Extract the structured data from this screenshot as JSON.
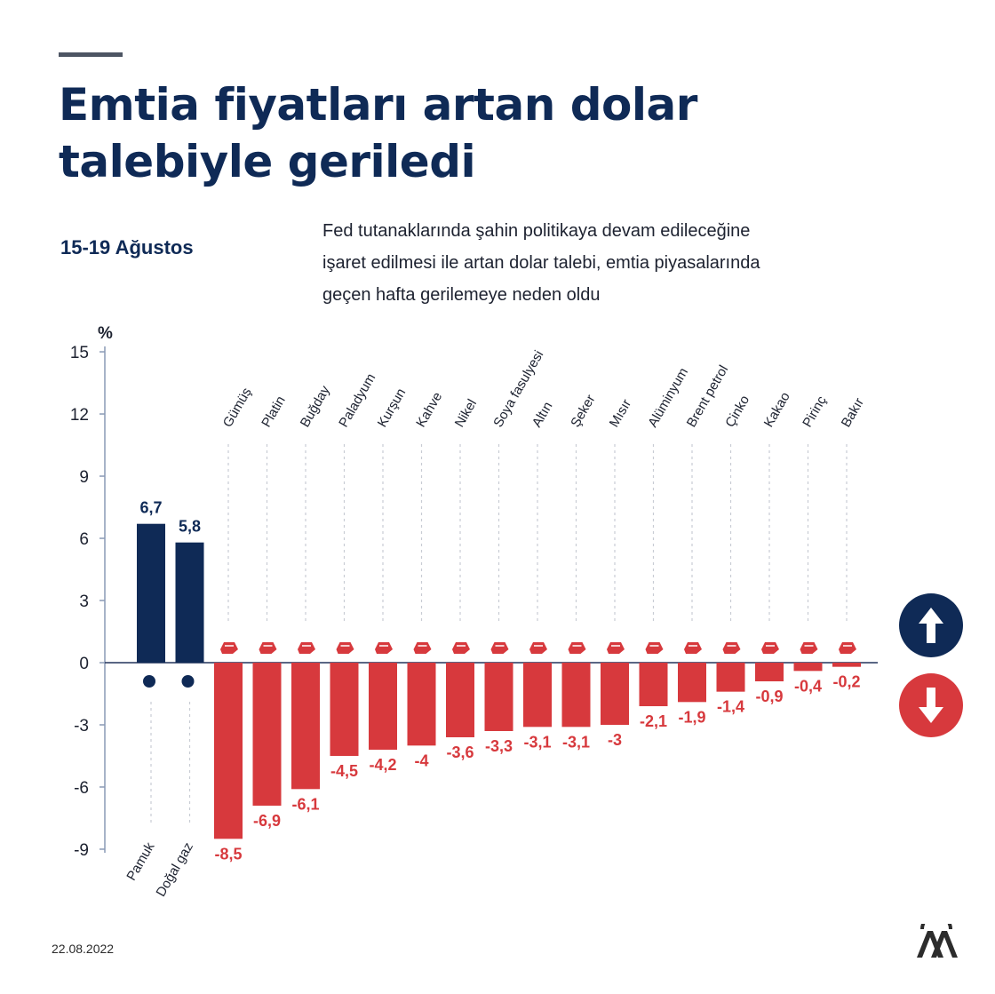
{
  "title_lines": [
    "Emtia fiyatları artan dolar",
    "talebiyle geriledi"
  ],
  "date_range": "15-19 Ağustos",
  "description_lines": [
    "Fed tutanaklarında şahin politikaya devam edileceğine",
    "işaret edilmesi ile artan dolar talebi, emtia piyasalarında",
    "geçen hafta gerilemeye neden oldu"
  ],
  "footer_date": "22.08.2022",
  "colors": {
    "up": "#0f2a56",
    "down": "#d7393d",
    "axis": "#8a9ab5",
    "guide": "#c8ccd4"
  },
  "up_indicator_icon": "arrow-up-icon",
  "down_indicator_icon": "arrow-down-icon",
  "logo_icon": "aa-logo-icon",
  "chart_data": {
    "type": "bar",
    "unit": "%",
    "ylim": [
      -9,
      15
    ],
    "yticks": [
      15,
      12,
      9,
      6,
      3,
      0,
      -3,
      -6,
      -9
    ],
    "categories": [
      "Pamuk",
      "Doğal gaz",
      "Gümüş",
      "Platin",
      "Buğday",
      "Paladyum",
      "Kurşun",
      "Kahve",
      "Nikel",
      "Soya fasulyesi",
      "Altın",
      "Şeker",
      "Mısır",
      "Alüminyum",
      "Brent petrol",
      "Çinko",
      "Kakao",
      "Pirinç",
      "Bakır"
    ],
    "values": [
      6.7,
      5.8,
      -8.5,
      -6.9,
      -6.1,
      -4.5,
      -4.2,
      -4,
      -3.6,
      -3.3,
      -3.1,
      -3.1,
      -3,
      -2.1,
      -1.9,
      -1.4,
      -0.9,
      -0.4,
      -0.2
    ],
    "value_labels": [
      "6,7",
      "5,8",
      "-8,5",
      "-6,9",
      "-6,1",
      "-4,5",
      "-4,2",
      "-4",
      "-3,6",
      "-3,3",
      "-3,1",
      "-3,1",
      "-3",
      "-2,1",
      "-1,9",
      "-1,4",
      "-0,9",
      "-0,4",
      "-0,2"
    ],
    "icons": [
      "cotton-icon",
      "gas-flame-icon",
      "silver-bars-icon",
      "platinum-bars-icon",
      "wheat-icon",
      "palladium-bars-icon",
      "lead-bars-icon",
      "coffee-bean-icon",
      "nickel-bars-icon",
      "soybean-icon",
      "gold-bars-icon",
      "sugar-sack-icon",
      "corn-icon",
      "aluminum-bars-icon",
      "oil-barrel-icon",
      "zinc-bars-icon",
      "cocoa-bean-icon",
      "rice-sack-icon",
      "copper-bars-icon"
    ]
  }
}
